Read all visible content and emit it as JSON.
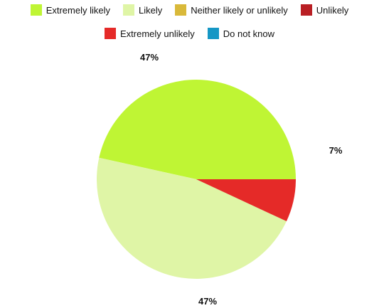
{
  "chart_data": {
    "type": "pie",
    "legend_position": "top",
    "categories": [
      "Extremely likely",
      "Likely",
      "Neither likely or unlikely",
      "Unlikely",
      "Extremely unlikely",
      "Do not know"
    ],
    "values": [
      47,
      47,
      0,
      0,
      7,
      0
    ],
    "labels": [
      "47%",
      "47%",
      "",
      "",
      "7%",
      ""
    ],
    "colors": [
      "#bff534",
      "#dff5a6",
      "#d9b93a",
      "#b91f24",
      "#e52a28",
      "#1597c5"
    ]
  }
}
